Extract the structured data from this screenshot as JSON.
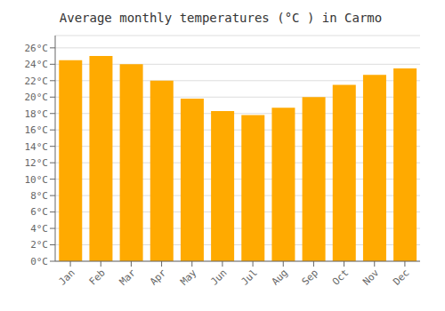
{
  "chart_data": {
    "type": "bar",
    "title": "Average monthly temperatures (°C ) in Carmo",
    "categories": [
      "Jan",
      "Feb",
      "Mar",
      "Apr",
      "May",
      "Jun",
      "Jul",
      "Aug",
      "Sep",
      "Oct",
      "Nov",
      "Dec"
    ],
    "values": [
      24.5,
      25.0,
      24.0,
      22.0,
      19.8,
      18.3,
      17.8,
      18.7,
      20.0,
      21.5,
      22.7,
      23.5
    ],
    "color": "#FFAA00",
    "ylim": [
      0,
      27.5
    ],
    "yticks": [
      {
        "value": 0,
        "label": "0°C"
      },
      {
        "value": 2,
        "label": "2°C"
      },
      {
        "value": 4,
        "label": "4°C"
      },
      {
        "value": 6,
        "label": "6°C"
      },
      {
        "value": 8,
        "label": "8°C"
      },
      {
        "value": 10,
        "label": "10°C"
      },
      {
        "value": 12,
        "label": "12°C"
      },
      {
        "value": 14,
        "label": "14°C"
      },
      {
        "value": 16,
        "label": "16°C"
      },
      {
        "value": 18,
        "label": "18°C"
      },
      {
        "value": 20,
        "label": "20°C"
      },
      {
        "value": 22,
        "label": "22°C"
      },
      {
        "value": 24,
        "label": "24°C"
      },
      {
        "value": 26,
        "label": "26°C"
      }
    ],
    "grid": true
  }
}
